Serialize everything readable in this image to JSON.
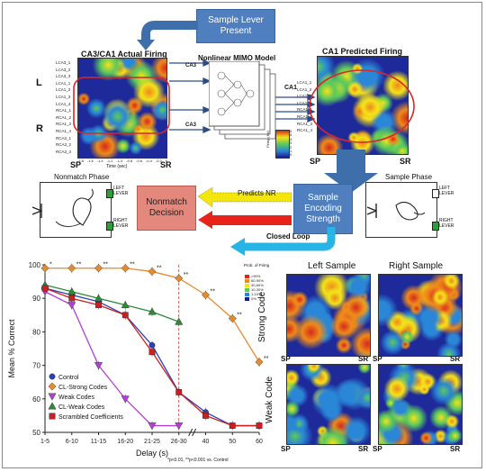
{
  "top": {
    "sample_lever_present": "Sample Lever Present",
    "actual_title": "CA3/CA1 Actual Firing",
    "mimo_title": "Nonlinear MIMO Model",
    "predicted_title": "CA1 Predicted Firing",
    "ca3_label": "CA3",
    "ca1_label": "CA1",
    "ca3_label_bottom": "CA3",
    "L": "L",
    "R": "R",
    "time_label": "Time (sec)",
    "sp": "SP",
    "sr": "SR",
    "row_labels_left": [
      "LCA3_1",
      "LCA3_2",
      "LCA3_3",
      "LCA1_1",
      "LCA1_2",
      "LCA1_3",
      "LCA1_4",
      "RCA1_1",
      "RCA1_2",
      "RCA1_3",
      "RCA1_4",
      "RCA3_1",
      "RCA3_2",
      "RCA3_3"
    ],
    "row_labels_right": [
      "LCA1_1",
      "LCA1_2",
      "LCA1_3",
      "LCA1_4",
      "RCA1_1",
      "RCA1_2",
      "RCA1_3",
      "RCA1_4"
    ],
    "time_ticks": [
      "-1.8",
      "-1.6",
      "-1.4",
      "-1.2",
      "-1.0",
      "-0.8",
      "-0.6",
      "-0.4",
      "-0.2",
      "0"
    ],
    "firing_label": "Firing (Hz)",
    "scale_values": [
      "0",
      "1",
      "2",
      "3",
      "4",
      "5",
      "6"
    ]
  },
  "middle": {
    "nonmatch_phase": "Nonmatch Phase",
    "sample_phase": "Sample Phase",
    "left_lever": "LEFT LEVER",
    "right_lever": "RIGHT LEVER",
    "left_label": "LEFT",
    "lever_label": "LEVER",
    "right_label": "RIGHT",
    "nonmatch_decision": "Nonmatch Decision",
    "predicts_nr": "Predicts NR",
    "closed_loop": "Closed Loop",
    "sample_encoding_strength": "Sample Encoding Strength",
    "colors": {
      "yellow": "#f2e60c",
      "red": "#e8231a",
      "cyan": "#27b5e5",
      "blue_box": "#4f7fbf",
      "red_box": "#e4877c"
    }
  },
  "chart_data": {
    "type": "line",
    "xlabel": "Delay (s)",
    "ylabel": "Mean % Correct",
    "categories": [
      "1-5",
      "6-10",
      "11-15",
      "16-20",
      "21-25",
      "26-30",
      "40",
      "50",
      "60"
    ],
    "ylim": [
      50,
      100
    ],
    "yticks": [
      50,
      60,
      70,
      80,
      90,
      100
    ],
    "series": [
      {
        "name": "Control",
        "color": "#2b3fb8",
        "marker": "circle",
        "values": [
          93,
          91,
          89,
          85,
          76,
          62,
          56,
          52,
          52
        ]
      },
      {
        "name": "CL-Strong Codes",
        "color": "#e68a2e",
        "marker": "diamond",
        "values": [
          99,
          99,
          99,
          99,
          98,
          96,
          91,
          84,
          71
        ]
      },
      {
        "name": "Weak Codes",
        "color": "#b240d6",
        "marker": "triangle-down",
        "values": [
          92,
          88,
          70,
          60,
          52,
          52,
          null,
          null,
          null
        ]
      },
      {
        "name": "CL-Weak Codes",
        "color": "#2f8a3a",
        "marker": "triangle-up",
        "values": [
          94,
          92,
          90,
          88,
          86,
          83,
          null,
          null,
          null
        ]
      },
      {
        "name": "Scrambled Coefficients",
        "color": "#cc2020",
        "marker": "square",
        "values": [
          93,
          90,
          88,
          85,
          74,
          62,
          55,
          52,
          52
        ]
      }
    ],
    "significance_marks": [
      "*",
      "**",
      "**",
      "**",
      "**",
      "**",
      "**",
      "**",
      "**"
    ],
    "footnote": "*p<0.01, **p<0.001 vs. Control",
    "prob_legend_title": "Prob. of Firing",
    "prob_legend_items": [
      ">90%",
      "60-90%",
      "30-60%",
      "10-30%",
      "1-10%",
      "0%"
    ],
    "prob_legend_colors": [
      "#d42b1c",
      "#ee8a1a",
      "#f4e21a",
      "#5cc95c",
      "#2a86d6",
      "#1a1a8a"
    ]
  },
  "heatmaps": {
    "left_sample": "Left Sample",
    "right_sample": "Right Sample",
    "strong_code": "Strong Code",
    "weak_code": "Weak Code",
    "sp": "SP",
    "sr": "SR"
  }
}
